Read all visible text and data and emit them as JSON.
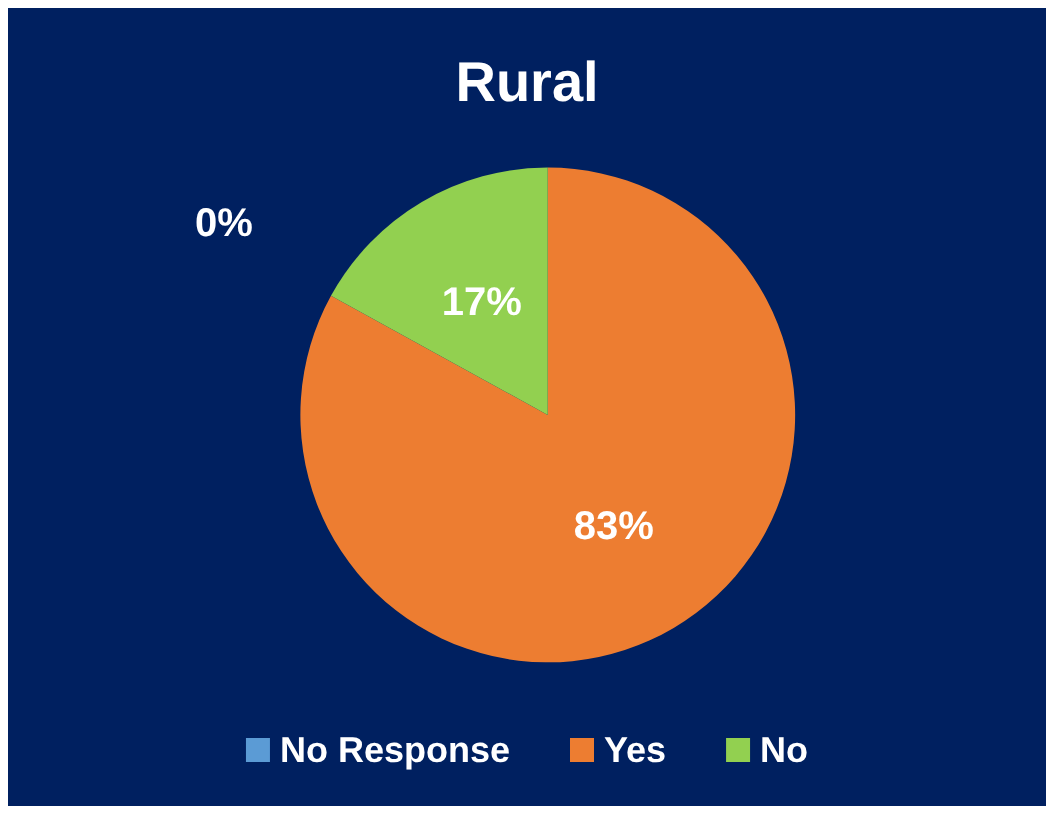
{
  "chart_data": {
    "type": "pie",
    "title": "Rural",
    "categories": [
      "No Response",
      "Yes",
      "No"
    ],
    "values": [
      0,
      83,
      17
    ],
    "value_labels": [
      "0%",
      "83%",
      "17%"
    ],
    "colors": [
      "#5b9bd5",
      "#ed7d31",
      "#92d050"
    ],
    "legend": "bottom"
  }
}
